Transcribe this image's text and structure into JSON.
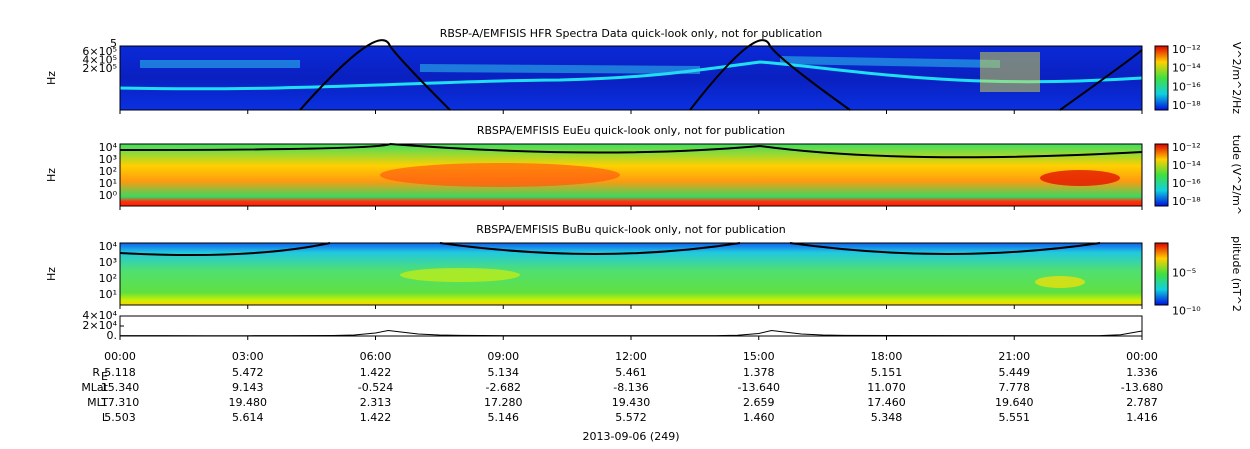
{
  "chart_data": {
    "type": "line",
    "x": [
      0,
      1,
      2,
      3,
      4,
      5,
      5.5,
      6,
      6.3,
      6.6,
      7,
      7.5,
      8,
      9,
      12,
      14,
      14.5,
      15,
      15.3,
      15.6,
      16,
      16.5,
      17,
      20,
      22,
      23,
      23.5,
      24
    ],
    "values": [
      800,
      700,
      600,
      600,
      700,
      1000,
      2000,
      6000,
      11000,
      8000,
      4000,
      2000,
      1200,
      900,
      800,
      800,
      1500,
      5000,
      11000,
      8000,
      4000,
      2000,
      1200,
      800,
      700,
      900,
      2500,
      10000
    ],
    "color": "#000000",
    "xlim": [
      0,
      24
    ],
    "xticks": [
      {
        "value": 0,
        "label": "00:00"
      },
      {
        "value": 3,
        "label": "03:00"
      },
      {
        "value": 6,
        "label": "06:00"
      },
      {
        "value": 9,
        "label": "09:00"
      },
      {
        "value": 12,
        "label": "12:00"
      },
      {
        "value": 15,
        "label": "15:00"
      },
      {
        "value": 18,
        "label": "18:00"
      },
      {
        "value": 21,
        "label": "21:00"
      },
      {
        "value": 24,
        "label": "00:00"
      }
    ],
    "ylim": [
      0,
      40000
    ],
    "yticks": [
      {
        "value": 0,
        "label": "0."
      },
      {
        "value": 20000,
        "label": "2×10⁴"
      },
      {
        "value": 40000,
        "label": "4×10⁴"
      }
    ],
    "xlabel": "2013-09-06 (249)"
  },
  "panels": [
    {
      "title": "RBSP-A/EMFISIS  HFR Spectra Data quick-look only, not for publication",
      "ylabel": "Hz",
      "yticks": [
        "6×10⁵",
        "4×10⁵",
        "2×10⁵"
      ],
      "ytop": "5",
      "cbar_label": "V^2/m^2/Hz",
      "cbar_ticks": [
        "10⁻¹²",
        "10⁻¹⁴",
        "10⁻¹⁶",
        "10⁻¹⁸"
      ]
    },
    {
      "title": "RBSPA/EMFISIS  EuEu quick-look only, not for publication",
      "ylabel": "Hz",
      "yticks": [
        "10⁴",
        "10³",
        "10²",
        "10¹",
        "10⁰"
      ],
      "cbar_label": "tude (V^2/m^",
      "cbar_ticks": [
        "10⁻¹²",
        "10⁻¹⁴",
        "10⁻¹⁶",
        "10⁻¹⁸"
      ]
    },
    {
      "title": "RBSPA/EMFISIS  BuBu quick-look only, not for publication",
      "ylabel": "Hz",
      "yticks": [
        "10⁴",
        "10³",
        "10²",
        "10¹"
      ],
      "cbar_label": "plitude (nT^2",
      "cbar_ticks": [
        "10⁻⁵",
        "10⁻¹⁰"
      ]
    }
  ],
  "ephemeris": {
    "rows": [
      {
        "label": "R",
        "sub": "E",
        "values": [
          "5.118",
          "5.472",
          "1.422",
          "5.134",
          "5.461",
          "1.378",
          "5.151",
          "5.449",
          "1.336"
        ]
      },
      {
        "label": "MLat",
        "values": [
          "15.340",
          "9.143",
          "-0.524",
          "-2.682",
          "-8.136",
          "-13.640",
          "11.070",
          "7.778",
          "-13.680"
        ]
      },
      {
        "label": "MLT",
        "values": [
          "17.310",
          "19.480",
          "2.313",
          "17.280",
          "19.430",
          "2.659",
          "17.460",
          "19.640",
          "2.787"
        ]
      },
      {
        "label": "L",
        "values": [
          "5.503",
          "5.614",
          "1.422",
          "5.146",
          "5.572",
          "1.460",
          "5.348",
          "5.551",
          "1.416"
        ]
      }
    ]
  }
}
